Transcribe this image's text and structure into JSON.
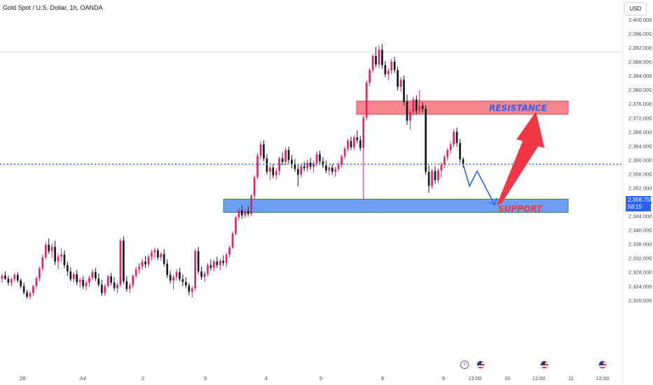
{
  "header": {
    "symbol_title": "Gold Spot / U.S. Dollar, 1h, OANDA",
    "currency_button": "USD"
  },
  "price_tag": {
    "price": "2,358.755",
    "countdown": "58:15"
  },
  "colors": {
    "up_candle": "#e91e63",
    "down_candle": "#131722",
    "current_price_line": "#2962ff",
    "resistance_zone": "#f7858e",
    "support_zone": "#6f9ef5",
    "resistance_label": "#2962ff",
    "support_label": "#f23645",
    "projection_path": "#2962ff",
    "projection_arrow": "#f23645"
  },
  "icons": [
    "flash-event-icon",
    "us-flag-event-icon"
  ],
  "chart_data": {
    "type": "candlestick",
    "title": "Gold Spot / U.S. Dollar, 1h, OANDA",
    "y_axis": {
      "ticks": [
        "2,320.000",
        "2,324.000",
        "2,328.000",
        "2,332.000",
        "2,336.000",
        "2,340.000",
        "2,344.000",
        "2,348.000",
        "2,352.000",
        "2,356.000",
        "2,360.000",
        "2,364.000",
        "2,368.000",
        "2,372.000",
        "2,376.000",
        "2,380.000",
        "2,384.000",
        "2,388.000",
        "2,392.000",
        "2,396.000",
        "2,400.000"
      ],
      "ylim": [
        2320,
        2400
      ]
    },
    "x_axis": {
      "ticks": [
        "28",
        "Jul",
        "2",
        "3",
        "4",
        "5",
        "8",
        "9",
        "12:00",
        "10",
        "12:00",
        "11",
        "12:00"
      ]
    },
    "current_price": 2358.755,
    "zones": [
      {
        "name": "resistance",
        "label": "RESISTANCE",
        "from": 2373.0,
        "to": 2376.8
      },
      {
        "name": "support",
        "label": "SUPPORT",
        "from": 2345.0,
        "to": 2348.8
      }
    ],
    "projection": {
      "path": [
        2358.8,
        2352.5,
        2356.8,
        2347.2
      ],
      "target": 2373.8
    },
    "candles": [
      [
        2326.0,
        2327.5,
        2325.0,
        2327.0
      ],
      [
        2327.0,
        2328.2,
        2325.8,
        2326.1
      ],
      [
        2326.1,
        2327.0,
        2324.2,
        2325.0
      ],
      [
        2325.0,
        2326.4,
        2324.0,
        2326.0
      ],
      [
        2326.0,
        2327.8,
        2325.2,
        2327.2
      ],
      [
        2327.2,
        2328.0,
        2325.0,
        2325.6
      ],
      [
        2325.6,
        2326.2,
        2323.4,
        2324.0
      ],
      [
        2324.0,
        2325.0,
        2321.6,
        2322.2
      ],
      [
        2322.2,
        2323.0,
        2320.4,
        2321.0
      ],
      [
        2321.0,
        2322.6,
        2320.2,
        2322.0
      ],
      [
        2322.0,
        2324.4,
        2321.2,
        2324.0
      ],
      [
        2324.0,
        2326.8,
        2323.2,
        2326.2
      ],
      [
        2326.2,
        2329.6,
        2325.4,
        2329.0
      ],
      [
        2329.0,
        2333.0,
        2328.4,
        2332.2
      ],
      [
        2332.2,
        2336.6,
        2331.6,
        2335.8
      ],
      [
        2335.8,
        2337.6,
        2333.2,
        2334.0
      ],
      [
        2334.0,
        2336.2,
        2332.0,
        2335.2
      ],
      [
        2335.2,
        2337.0,
        2330.0,
        2331.0
      ],
      [
        2331.0,
        2333.2,
        2328.8,
        2332.4
      ],
      [
        2332.4,
        2334.8,
        2331.0,
        2333.0
      ],
      [
        2333.0,
        2334.2,
        2329.2,
        2330.0
      ],
      [
        2330.0,
        2331.0,
        2327.0,
        2328.2
      ],
      [
        2328.2,
        2329.4,
        2325.4,
        2326.0
      ],
      [
        2326.0,
        2328.0,
        2325.0,
        2327.4
      ],
      [
        2327.4,
        2328.6,
        2324.2,
        2325.2
      ],
      [
        2325.2,
        2326.4,
        2323.6,
        2325.8
      ],
      [
        2325.8,
        2326.8,
        2323.2,
        2324.0
      ],
      [
        2324.0,
        2325.6,
        2322.8,
        2325.0
      ],
      [
        2325.0,
        2327.0,
        2323.8,
        2326.4
      ],
      [
        2326.4,
        2328.8,
        2325.6,
        2328.0
      ],
      [
        2328.0,
        2329.2,
        2325.4,
        2326.2
      ],
      [
        2326.2,
        2327.6,
        2323.8,
        2324.4
      ],
      [
        2324.4,
        2325.8,
        2321.2,
        2322.0
      ],
      [
        2322.0,
        2324.6,
        2321.2,
        2324.0
      ],
      [
        2324.0,
        2327.2,
        2323.6,
        2326.8
      ],
      [
        2326.8,
        2327.8,
        2324.2,
        2325.0
      ],
      [
        2325.0,
        2326.6,
        2322.6,
        2323.4
      ],
      [
        2323.4,
        2325.0,
        2322.0,
        2324.4
      ],
      [
        2324.4,
        2337.6,
        2323.8,
        2337.0
      ],
      [
        2337.0,
        2338.2,
        2324.6,
        2325.4
      ],
      [
        2325.4,
        2326.8,
        2322.4,
        2323.2
      ],
      [
        2323.2,
        2325.0,
        2322.0,
        2324.2
      ],
      [
        2324.2,
        2327.4,
        2323.4,
        2327.0
      ],
      [
        2327.0,
        2329.4,
        2326.2,
        2328.8
      ],
      [
        2328.8,
        2330.6,
        2327.6,
        2329.6
      ],
      [
        2329.6,
        2331.8,
        2328.6,
        2331.0
      ],
      [
        2331.0,
        2332.6,
        2329.2,
        2330.2
      ],
      [
        2330.2,
        2333.0,
        2329.4,
        2332.4
      ],
      [
        2332.4,
        2334.4,
        2331.2,
        2333.6
      ],
      [
        2333.6,
        2335.0,
        2332.0,
        2334.2
      ],
      [
        2334.2,
        2334.8,
        2331.4,
        2332.2
      ],
      [
        2332.2,
        2333.8,
        2331.2,
        2333.2
      ],
      [
        2333.2,
        2334.6,
        2329.6,
        2330.4
      ],
      [
        2330.4,
        2331.6,
        2326.4,
        2327.2
      ],
      [
        2327.2,
        2328.4,
        2324.8,
        2325.6
      ],
      [
        2325.6,
        2327.2,
        2323.0,
        2326.6
      ],
      [
        2326.6,
        2328.8,
        2325.6,
        2328.0
      ],
      [
        2328.0,
        2329.2,
        2325.4,
        2326.0
      ],
      [
        2326.0,
        2327.4,
        2324.0,
        2325.2
      ],
      [
        2325.2,
        2326.6,
        2323.4,
        2324.2
      ],
      [
        2324.2,
        2325.0,
        2321.4,
        2322.4
      ],
      [
        2322.4,
        2324.0,
        2320.8,
        2323.4
      ],
      [
        2323.4,
        2334.6,
        2322.6,
        2334.0
      ],
      [
        2334.0,
        2335.2,
        2327.4,
        2328.2
      ],
      [
        2328.2,
        2329.6,
        2325.8,
        2326.6
      ],
      [
        2326.6,
        2328.2,
        2325.2,
        2327.6
      ],
      [
        2327.6,
        2330.6,
        2326.8,
        2330.0
      ],
      [
        2330.0,
        2331.6,
        2328.4,
        2329.2
      ],
      [
        2329.2,
        2331.6,
        2328.2,
        2331.0
      ],
      [
        2331.0,
        2332.4,
        2329.2,
        2330.0
      ],
      [
        2330.0,
        2331.8,
        2328.6,
        2331.2
      ],
      [
        2331.2,
        2332.8,
        2329.8,
        2330.6
      ],
      [
        2330.6,
        2333.6,
        2329.4,
        2333.0
      ],
      [
        2333.0,
        2335.6,
        2332.2,
        2335.0
      ],
      [
        2335.0,
        2339.6,
        2334.6,
        2339.0
      ],
      [
        2339.0,
        2344.0,
        2338.4,
        2343.6
      ],
      [
        2343.6,
        2346.4,
        2342.8,
        2345.6
      ],
      [
        2345.6,
        2347.0,
        2343.2,
        2344.2
      ],
      [
        2344.2,
        2346.2,
        2343.4,
        2345.4
      ],
      [
        2345.4,
        2346.8,
        2343.8,
        2344.6
      ],
      [
        2344.6,
        2350.2,
        2344.0,
        2349.8
      ],
      [
        2349.8,
        2355.6,
        2348.6,
        2355.0
      ],
      [
        2355.0,
        2362.0,
        2354.4,
        2361.2
      ],
      [
        2361.2,
        2365.2,
        2360.0,
        2364.4
      ],
      [
        2364.4,
        2365.6,
        2359.6,
        2360.4
      ],
      [
        2360.4,
        2361.6,
        2355.8,
        2356.6
      ],
      [
        2356.6,
        2358.4,
        2354.2,
        2357.8
      ],
      [
        2357.8,
        2358.8,
        2354.8,
        2355.6
      ],
      [
        2355.6,
        2357.6,
        2354.4,
        2356.8
      ],
      [
        2356.8,
        2361.0,
        2355.6,
        2360.4
      ],
      [
        2360.4,
        2362.2,
        2358.4,
        2359.4
      ],
      [
        2359.4,
        2363.6,
        2358.6,
        2362.8
      ],
      [
        2362.8,
        2363.8,
        2359.0,
        2360.0
      ],
      [
        2360.0,
        2361.4,
        2357.6,
        2358.8
      ],
      [
        2358.8,
        2360.2,
        2356.6,
        2357.4
      ],
      [
        2357.4,
        2358.8,
        2352.4,
        2355.8
      ],
      [
        2355.8,
        2358.8,
        2355.0,
        2358.2
      ],
      [
        2358.2,
        2359.4,
        2356.8,
        2357.6
      ],
      [
        2357.6,
        2360.0,
        2356.6,
        2359.2
      ],
      [
        2359.2,
        2360.6,
        2357.2,
        2358.0
      ],
      [
        2358.0,
        2359.8,
        2356.4,
        2359.0
      ],
      [
        2359.0,
        2362.4,
        2358.2,
        2361.6
      ],
      [
        2361.6,
        2362.6,
        2358.8,
        2359.6
      ],
      [
        2359.6,
        2360.8,
        2357.6,
        2358.4
      ],
      [
        2358.4,
        2359.8,
        2356.2,
        2357.0
      ],
      [
        2357.0,
        2358.4,
        2355.6,
        2357.8
      ],
      [
        2357.8,
        2358.8,
        2355.8,
        2356.6
      ],
      [
        2356.6,
        2358.0,
        2355.2,
        2357.4
      ],
      [
        2357.4,
        2359.4,
        2356.6,
        2358.6
      ],
      [
        2358.6,
        2361.6,
        2357.8,
        2361.0
      ],
      [
        2361.0,
        2363.8,
        2360.2,
        2363.2
      ],
      [
        2363.2,
        2366.0,
        2362.4,
        2365.4
      ],
      [
        2365.4,
        2366.6,
        2362.8,
        2363.6
      ],
      [
        2363.6,
        2367.0,
        2362.8,
        2366.4
      ],
      [
        2366.4,
        2368.4,
        2364.8,
        2365.6
      ],
      [
        2365.6,
        2366.8,
        2362.6,
        2363.4
      ],
      [
        2363.4,
        2372.6,
        2348.6,
        2372.0
      ],
      [
        2372.0,
        2382.6,
        2371.2,
        2382.0
      ],
      [
        2382.0,
        2386.2,
        2381.0,
        2385.6
      ],
      [
        2385.6,
        2390.2,
        2384.8,
        2389.6
      ],
      [
        2389.6,
        2392.2,
        2386.4,
        2387.2
      ],
      [
        2387.2,
        2392.6,
        2386.2,
        2391.4
      ],
      [
        2391.4,
        2393.0,
        2386.0,
        2387.0
      ],
      [
        2387.0,
        2388.2,
        2383.6,
        2384.4
      ],
      [
        2384.4,
        2386.2,
        2382.8,
        2385.4
      ],
      [
        2385.4,
        2388.8,
        2384.4,
        2388.0
      ],
      [
        2388.0,
        2389.4,
        2384.8,
        2385.6
      ],
      [
        2385.6,
        2386.6,
        2379.8,
        2380.8
      ],
      [
        2380.8,
        2383.6,
        2379.4,
        2382.8
      ],
      [
        2382.8,
        2384.0,
        2375.6,
        2376.6
      ],
      [
        2376.6,
        2378.6,
        2370.0,
        2371.2
      ],
      [
        2371.2,
        2374.4,
        2368.6,
        2373.6
      ],
      [
        2373.6,
        2378.0,
        2372.6,
        2377.2
      ],
      [
        2377.2,
        2378.4,
        2373.0,
        2374.0
      ],
      [
        2374.0,
        2379.8,
        2373.2,
        2375.4
      ],
      [
        2375.4,
        2376.4,
        2373.6,
        2374.6
      ],
      [
        2374.6,
        2375.6,
        2355.8,
        2356.6
      ],
      [
        2356.6,
        2358.4,
        2350.6,
        2352.6
      ],
      [
        2352.6,
        2357.4,
        2351.8,
        2356.8
      ],
      [
        2356.8,
        2358.2,
        2353.2,
        2354.2
      ],
      [
        2354.2,
        2357.6,
        2353.4,
        2357.0
      ],
      [
        2357.0,
        2359.4,
        2355.0,
        2358.6
      ],
      [
        2358.6,
        2361.4,
        2357.6,
        2360.8
      ],
      [
        2360.8,
        2363.4,
        2359.8,
        2362.8
      ],
      [
        2362.8,
        2365.2,
        2361.6,
        2364.4
      ],
      [
        2364.4,
        2368.8,
        2363.6,
        2368.0
      ],
      [
        2368.0,
        2369.2,
        2363.8,
        2364.8
      ],
      [
        2364.8,
        2366.0,
        2359.2,
        2360.2
      ],
      [
        2360.2,
        2360.8,
        2357.8,
        2358.8
      ]
    ]
  }
}
